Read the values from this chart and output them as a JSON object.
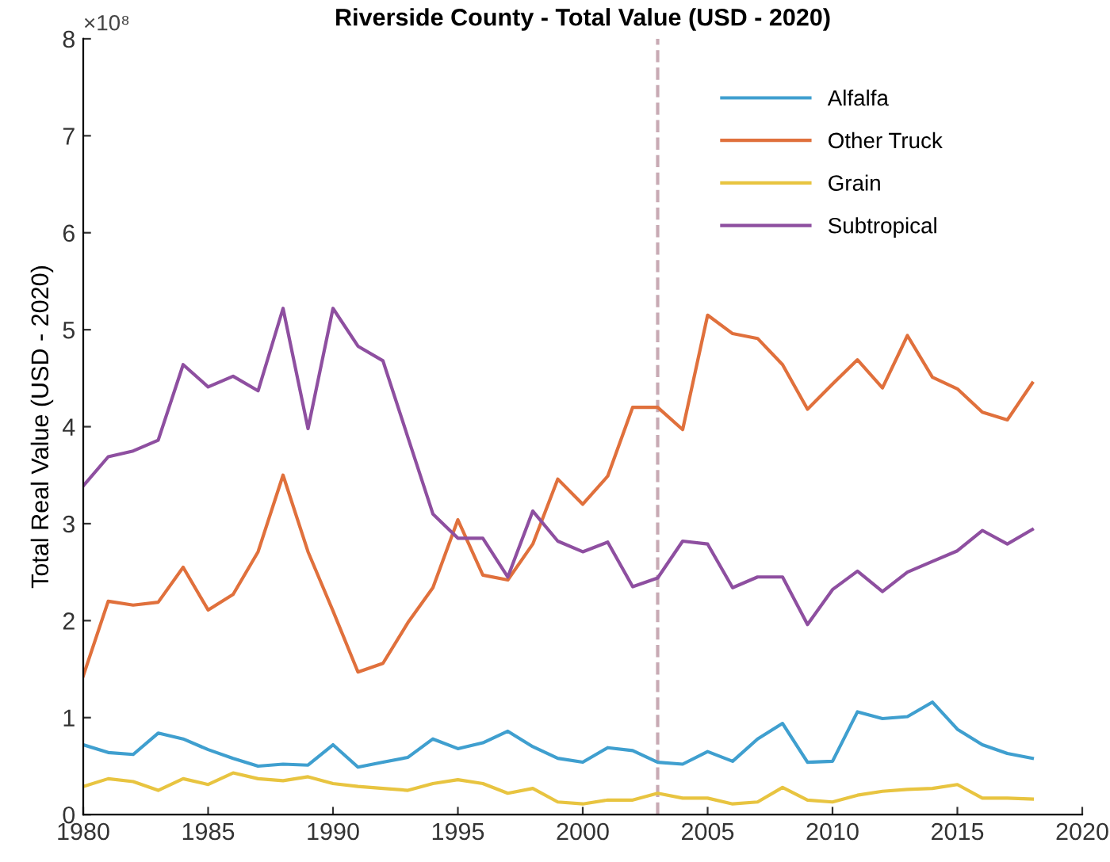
{
  "chart_data": {
    "type": "line",
    "title": "Riverside County - Total Value (USD - 2020)",
    "ylabel": "Total Real Value (USD - 2020)",
    "annotations": [
      "×10⁸"
    ],
    "x": [
      1980,
      1981,
      1982,
      1983,
      1984,
      1985,
      1986,
      1987,
      1988,
      1989,
      1990,
      1991,
      1992,
      1993,
      1994,
      1995,
      1996,
      1997,
      1998,
      1999,
      2000,
      2001,
      2002,
      2003,
      2004,
      2005,
      2006,
      2007,
      2008,
      2009,
      2010,
      2011,
      2012,
      2013,
      2014,
      2015,
      2016,
      2017,
      2018
    ],
    "series": [
      {
        "name": "Alfalfa",
        "color": "#3f9fcf",
        "values": [
          0.72,
          0.64,
          0.62,
          0.84,
          0.78,
          0.67,
          0.58,
          0.5,
          0.52,
          0.51,
          0.72,
          0.49,
          0.54,
          0.59,
          0.78,
          0.68,
          0.74,
          0.86,
          0.7,
          0.58,
          0.54,
          0.69,
          0.66,
          0.54,
          0.52,
          0.65,
          0.55,
          0.78,
          0.94,
          0.54,
          0.55,
          1.06,
          0.99,
          1.01,
          1.16,
          0.88,
          0.72,
          0.63,
          0.58
        ]
      },
      {
        "name": "Other Truck",
        "color": "#e0703c",
        "values": [
          1.43,
          2.2,
          2.16,
          2.19,
          2.55,
          2.11,
          2.27,
          2.71,
          3.5,
          2.71,
          2.1,
          1.47,
          1.56,
          1.98,
          2.34,
          3.04,
          2.47,
          2.42,
          2.79,
          3.46,
          3.2,
          3.49,
          4.2,
          4.2,
          3.97,
          5.15,
          4.96,
          4.91,
          4.64,
          4.18,
          4.44,
          4.69,
          4.4,
          4.94,
          4.51,
          4.39,
          4.15,
          4.07,
          4.45
        ]
      },
      {
        "name": "Grain",
        "color": "#e8c440",
        "values": [
          0.29,
          0.37,
          0.34,
          0.25,
          0.37,
          0.31,
          0.43,
          0.37,
          0.35,
          0.39,
          0.32,
          0.29,
          0.27,
          0.25,
          0.32,
          0.36,
          0.32,
          0.22,
          0.27,
          0.13,
          0.11,
          0.15,
          0.15,
          0.22,
          0.17,
          0.17,
          0.11,
          0.13,
          0.28,
          0.15,
          0.13,
          0.2,
          0.24,
          0.26,
          0.27,
          0.31,
          0.17,
          0.17,
          0.16
        ]
      },
      {
        "name": "Subtropical",
        "color": "#8e4fa0",
        "values": [
          3.39,
          3.69,
          3.75,
          3.86,
          4.64,
          4.41,
          4.52,
          4.37,
          5.22,
          3.98,
          5.22,
          4.83,
          4.68,
          3.89,
          3.1,
          2.85,
          2.85,
          2.45,
          3.13,
          2.82,
          2.71,
          2.81,
          2.35,
          2.44,
          2.82,
          2.79,
          2.34,
          2.45,
          2.45,
          1.96,
          2.32,
          2.51,
          2.3,
          2.5,
          2.61,
          2.72,
          2.93,
          2.79,
          2.94
        ]
      }
    ],
    "ref_lines": [
      {
        "axis": "x",
        "value": 2003,
        "color": "#c8aab4",
        "line_style": "dashed"
      }
    ],
    "xlim": [
      1980,
      2020
    ],
    "xticks": [
      1980,
      1985,
      1990,
      1995,
      2000,
      2005,
      2010,
      2015,
      2020
    ],
    "ylim": [
      0,
      8
    ],
    "yticks": [
      0,
      1,
      2,
      3,
      4,
      5,
      6,
      7,
      8
    ],
    "grid": false,
    "legend": "top right",
    "marker": "none",
    "line_style": "solid"
  }
}
